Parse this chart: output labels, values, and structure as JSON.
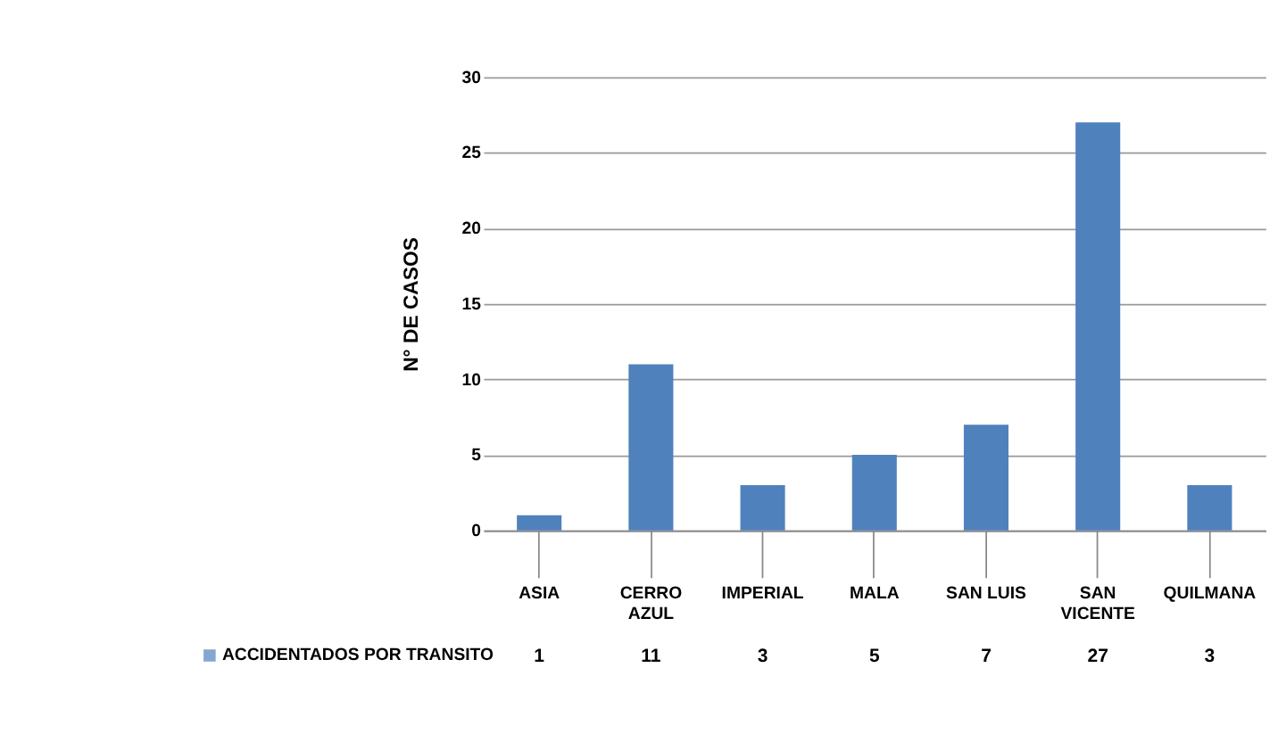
{
  "chart_data": {
    "type": "bar",
    "ylabel": "N° DE CASOS",
    "categories": [
      "ASIA",
      "CERRO AZUL",
      "IMPERIAL",
      "MALA",
      "SAN LUIS",
      "SAN VICENTE",
      "QUILMANA"
    ],
    "series": [
      {
        "name": "ACCIDENTADOS POR TRANSITO",
        "color": "#4f81bd",
        "values": [
          1,
          11,
          3,
          5,
          7,
          27,
          3
        ]
      }
    ],
    "ylim": [
      0,
      30
    ],
    "yticks": [
      0,
      5,
      10,
      15,
      20,
      25,
      30
    ],
    "grid": "y",
    "legend": "bottom",
    "data_labels": true
  }
}
